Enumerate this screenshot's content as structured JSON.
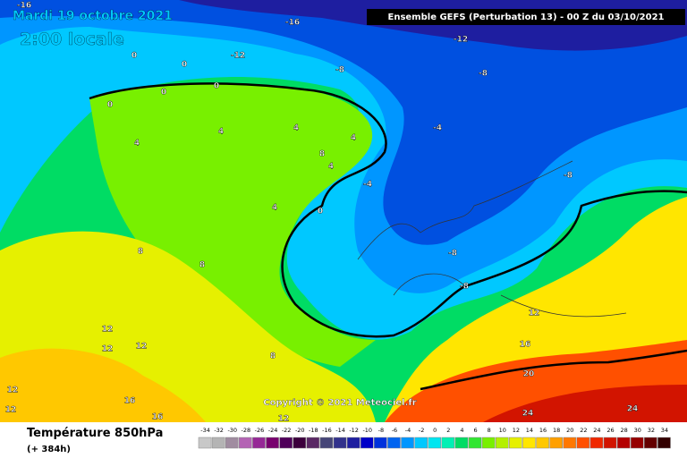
{
  "header": {
    "date": "Mardi 19 octobre 2021",
    "time": "2:00 locale",
    "model": "Ensemble GEFS  (Perturbation 13)  -  00 Z du 03/10/2021",
    "copyright": "Copyright © 2021 Meteociel.fr"
  },
  "footer": {
    "title": "Température 850hPa",
    "lead": "(+ 384h)"
  },
  "contour_labels": [
    "-16",
    "-16",
    "-12",
    "-12",
    "0",
    "0",
    "0",
    "0",
    "0",
    "4",
    "4",
    "4",
    "4",
    "8",
    "4",
    "-4",
    "-8",
    "-8",
    "-8",
    "-4",
    "0",
    "4",
    "-8",
    "-8",
    "8",
    "8",
    "12",
    "12",
    "12",
    "16",
    "16",
    "12",
    "16",
    "20",
    "24",
    "24",
    "8",
    "12",
    "12",
    "12"
  ],
  "legend": {
    "values": [
      -34,
      -32,
      -30,
      -28,
      -26,
      -24,
      -22,
      -20,
      -18,
      -16,
      -14,
      -12,
      -10,
      -8,
      -6,
      -4,
      -2,
      0,
      2,
      4,
      6,
      8,
      10,
      12,
      14,
      16,
      18,
      20,
      22,
      24,
      26,
      28,
      30,
      32,
      34
    ],
    "colors": [
      "#c8c8c8",
      "#b4b4b4",
      "#a08ca0",
      "#b464b4",
      "#962896",
      "#78006e",
      "#50005a",
      "#3c003c",
      "#5a2864",
      "#464678",
      "#32328c",
      "#1e1ea0",
      "#0000c8",
      "#0032dc",
      "#0064f0",
      "#0096ff",
      "#00c8ff",
      "#00e6f0",
      "#00f0b4",
      "#00dc64",
      "#32e632",
      "#78f000",
      "#b4f000",
      "#e6f000",
      "#ffe600",
      "#ffc800",
      "#ffa000",
      "#ff7800",
      "#ff5000",
      "#f02800",
      "#d21400",
      "#b40000",
      "#960000",
      "#640000",
      "#320000"
    ]
  }
}
